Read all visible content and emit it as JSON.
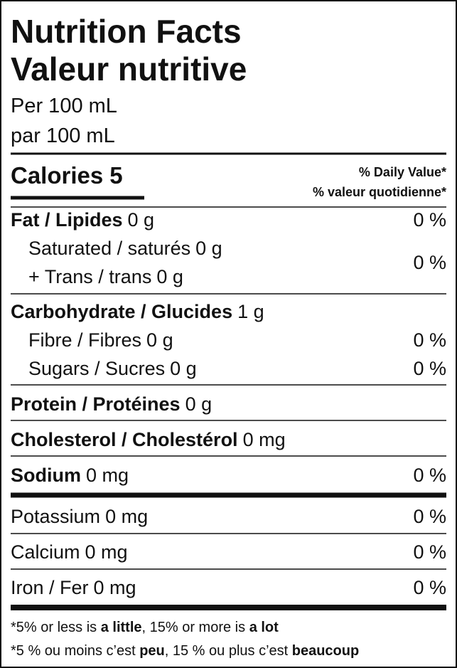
{
  "title": [
    "Nutrition Facts",
    "Valeur nutritive"
  ],
  "serving": [
    "Per 100 mL",
    "par 100 mL"
  ],
  "calories": {
    "label": "Calories",
    "value": "5"
  },
  "dv_header": [
    "% Daily Value*",
    "% valeur quotidienne*"
  ],
  "fat": {
    "name": "Fat / Lipides",
    "amount": "0 g",
    "dv": "0 %"
  },
  "saturated": {
    "name": "Saturated / saturés",
    "amount": "0 g",
    "dv": "0 %"
  },
  "trans": {
    "name": "+ Trans / trans",
    "amount": "0 g"
  },
  "carbohydrate": {
    "name": "Carbohydrate / Glucides",
    "amount": "1 g"
  },
  "fibre": {
    "name": "Fibre / Fibres",
    "amount": "0 g",
    "dv": "0 %"
  },
  "sugars": {
    "name": "Sugars / Sucres",
    "amount": "0 g",
    "dv": "0 %"
  },
  "protein": {
    "name": "Protein / Protéines",
    "amount": "0 g"
  },
  "cholesterol": {
    "name": "Cholesterol / Cholestérol",
    "amount": "0 mg"
  },
  "sodium": {
    "name": "Sodium",
    "amount": "0 mg",
    "dv": "0 %"
  },
  "potassium": {
    "name": "Potassium",
    "amount": "0 mg",
    "dv": "0 %"
  },
  "calcium": {
    "name": "Calcium",
    "amount": "0 mg",
    "dv": "0 %"
  },
  "iron": {
    "name": "Iron / Fer",
    "amount": "0 mg",
    "dv": "0 %"
  },
  "footnote": [
    [
      "*5% or less is ",
      "a little",
      ", 15% or more is ",
      "a lot"
    ],
    [
      "*5 % ou moins c’est ",
      "peu",
      ", 15 % ou plus c’est ",
      "beaucoup"
    ]
  ]
}
